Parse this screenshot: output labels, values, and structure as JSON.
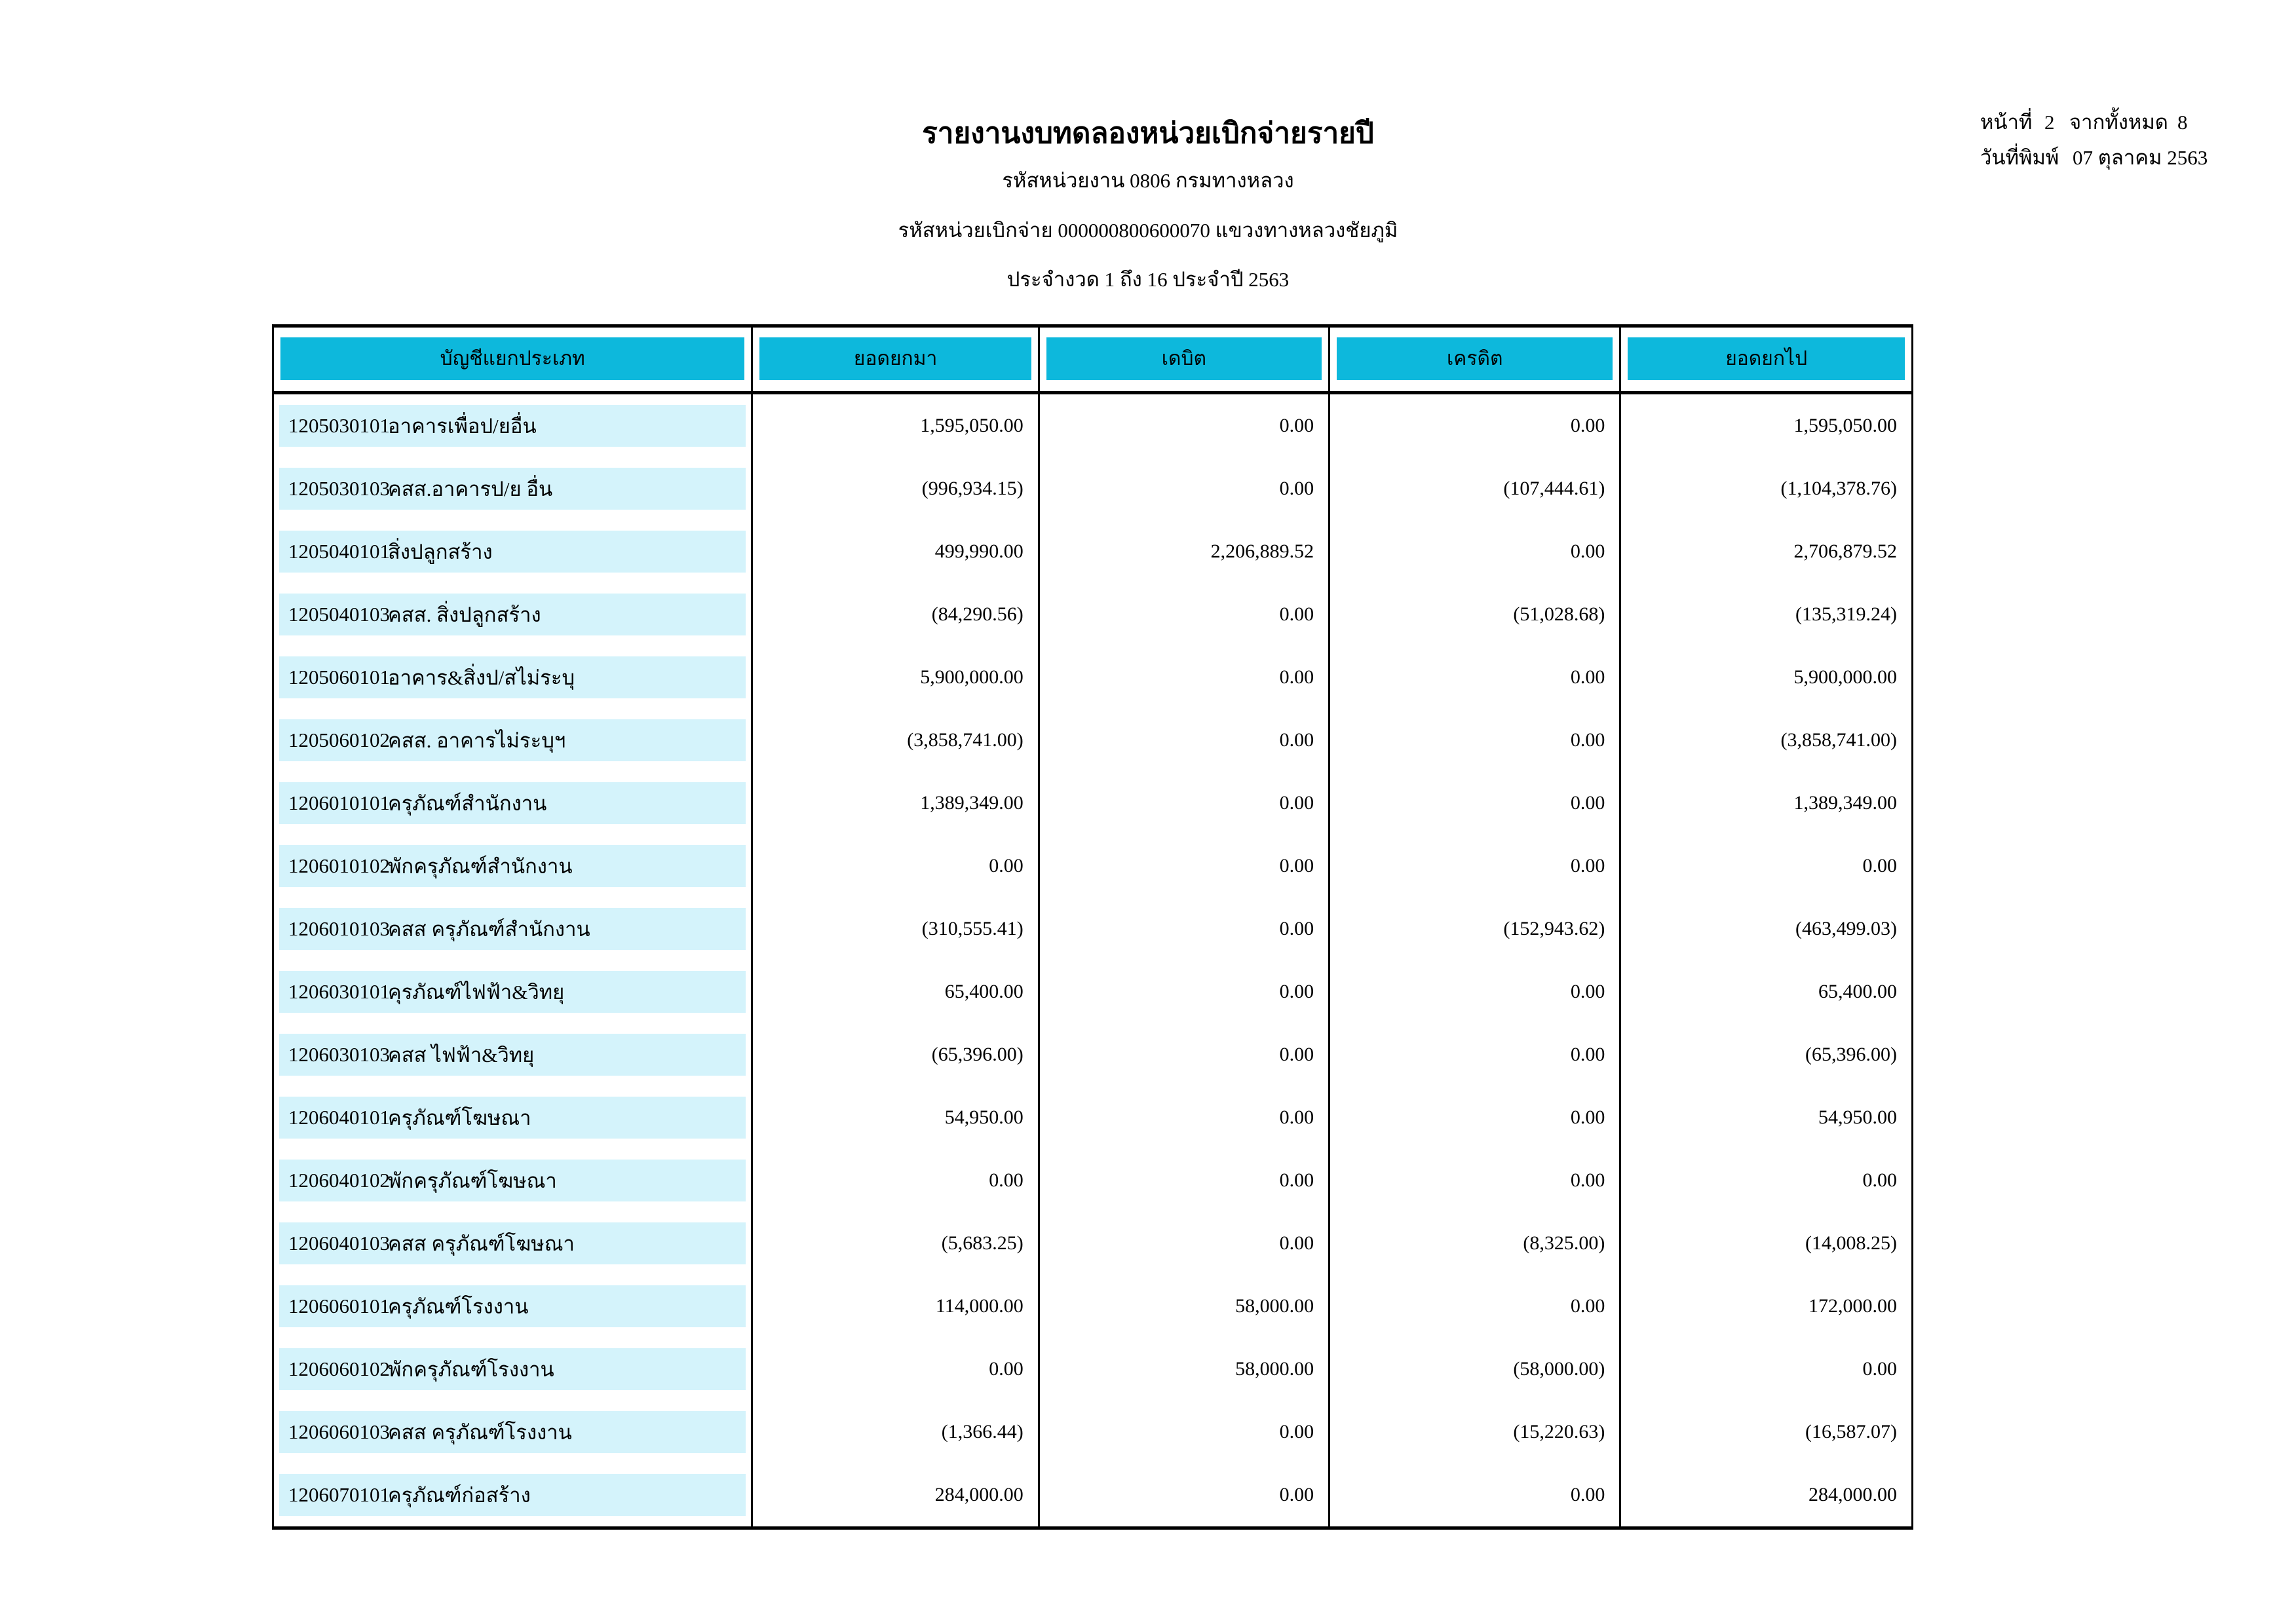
{
  "header": {
    "title": "รายงานงบทดลองหน่วยเบิกจ่ายรายปี",
    "agency_line": "รหัสหน่วยงาน 0806 กรมทางหลวง",
    "unit_line": "รหัสหน่วยเบิกจ่าย 000000800600070 แขวงทางหลวงชัยภูมิ",
    "period_line": "ประจำงวด 1 ถึง 16 ประจำปี 2563"
  },
  "page_info": {
    "page_label": "หน้าที่",
    "page_number": "2",
    "total_label": "จากทั้งหมด",
    "total_pages": "8",
    "print_date_label": "วันที่พิมพ์",
    "print_date": "07 ตุลาคม 2563"
  },
  "table": {
    "columns": [
      "บัญชีแยกประเภท",
      "ยอดยกมา",
      "เดบิต",
      "เครดิต",
      "ยอดยกไป"
    ],
    "rows": [
      {
        "code": "1205030101",
        "name": "อาคารเพื่อป/ยอื่น",
        "opening": "1,595,050.00",
        "debit": "0.00",
        "credit": "0.00",
        "closing": "1,595,050.00"
      },
      {
        "code": "1205030103",
        "name": "คสส.อาคารป/ย อื่น",
        "opening": "(996,934.15)",
        "debit": "0.00",
        "credit": "(107,444.61)",
        "closing": "(1,104,378.76)"
      },
      {
        "code": "1205040101",
        "name": "สิ่งปลูกสร้าง",
        "opening": "499,990.00",
        "debit": "2,206,889.52",
        "credit": "0.00",
        "closing": "2,706,879.52"
      },
      {
        "code": "1205040103",
        "name": "คสส. สิ่งปลูกสร้าง",
        "opening": "(84,290.56)",
        "debit": "0.00",
        "credit": "(51,028.68)",
        "closing": "(135,319.24)"
      },
      {
        "code": "1205060101",
        "name": "อาคาร&สิ่งป/สไม่ระบุ",
        "opening": "5,900,000.00",
        "debit": "0.00",
        "credit": "0.00",
        "closing": "5,900,000.00"
      },
      {
        "code": "1205060102",
        "name": "คสส. อาคารไม่ระบุฯ",
        "opening": "(3,858,741.00)",
        "debit": "0.00",
        "credit": "0.00",
        "closing": "(3,858,741.00)"
      },
      {
        "code": "1206010101",
        "name": "ครุภัณฑ์สำนักงาน",
        "opening": "1,389,349.00",
        "debit": "0.00",
        "credit": "0.00",
        "closing": "1,389,349.00"
      },
      {
        "code": "1206010102",
        "name": "พักครุภัณฑ์สำนักงาน",
        "opening": "0.00",
        "debit": "0.00",
        "credit": "0.00",
        "closing": "0.00"
      },
      {
        "code": "1206010103",
        "name": "คสส ครุภัณฑ์สำนักงาน",
        "opening": "(310,555.41)",
        "debit": "0.00",
        "credit": "(152,943.62)",
        "closing": "(463,499.03)"
      },
      {
        "code": "1206030101",
        "name": "คุรภัณฑ์ไฟฟ้า&วิทยุ",
        "opening": "65,400.00",
        "debit": "0.00",
        "credit": "0.00",
        "closing": "65,400.00"
      },
      {
        "code": "1206030103",
        "name": "คสส ไฟฟ้า&วิทยุ",
        "opening": "(65,396.00)",
        "debit": "0.00",
        "credit": "0.00",
        "closing": "(65,396.00)"
      },
      {
        "code": "1206040101",
        "name": "ครุภัณฑ์โฆษณา",
        "opening": "54,950.00",
        "debit": "0.00",
        "credit": "0.00",
        "closing": "54,950.00"
      },
      {
        "code": "1206040102",
        "name": "พักครุภัณฑ์โฆษณา",
        "opening": "0.00",
        "debit": "0.00",
        "credit": "0.00",
        "closing": "0.00"
      },
      {
        "code": "1206040103",
        "name": "คสส ครุภัณฑ์โฆษณา",
        "opening": "(5,683.25)",
        "debit": "0.00",
        "credit": "(8,325.00)",
        "closing": "(14,008.25)"
      },
      {
        "code": "1206060101",
        "name": "ครุภัณฑ์โรงงาน",
        "opening": "114,000.00",
        "debit": "58,000.00",
        "credit": "0.00",
        "closing": "172,000.00"
      },
      {
        "code": "1206060102",
        "name": "พักครุภัณฑ์โรงงาน",
        "opening": "0.00",
        "debit": "58,000.00",
        "credit": "(58,000.00)",
        "closing": "0.00"
      },
      {
        "code": "1206060103",
        "name": "คสส ครุภัณฑ์โรงงาน",
        "opening": "(1,366.44)",
        "debit": "0.00",
        "credit": "(15,220.63)",
        "closing": "(16,587.07)"
      },
      {
        "code": "1206070101",
        "name": "ครุภัณฑ์ก่อสร้าง",
        "opening": "284,000.00",
        "debit": "0.00",
        "credit": "0.00",
        "closing": "284,000.00"
      }
    ]
  },
  "colors": {
    "header_cell": "#0db8dc",
    "row_band": "#d4f3fb"
  }
}
